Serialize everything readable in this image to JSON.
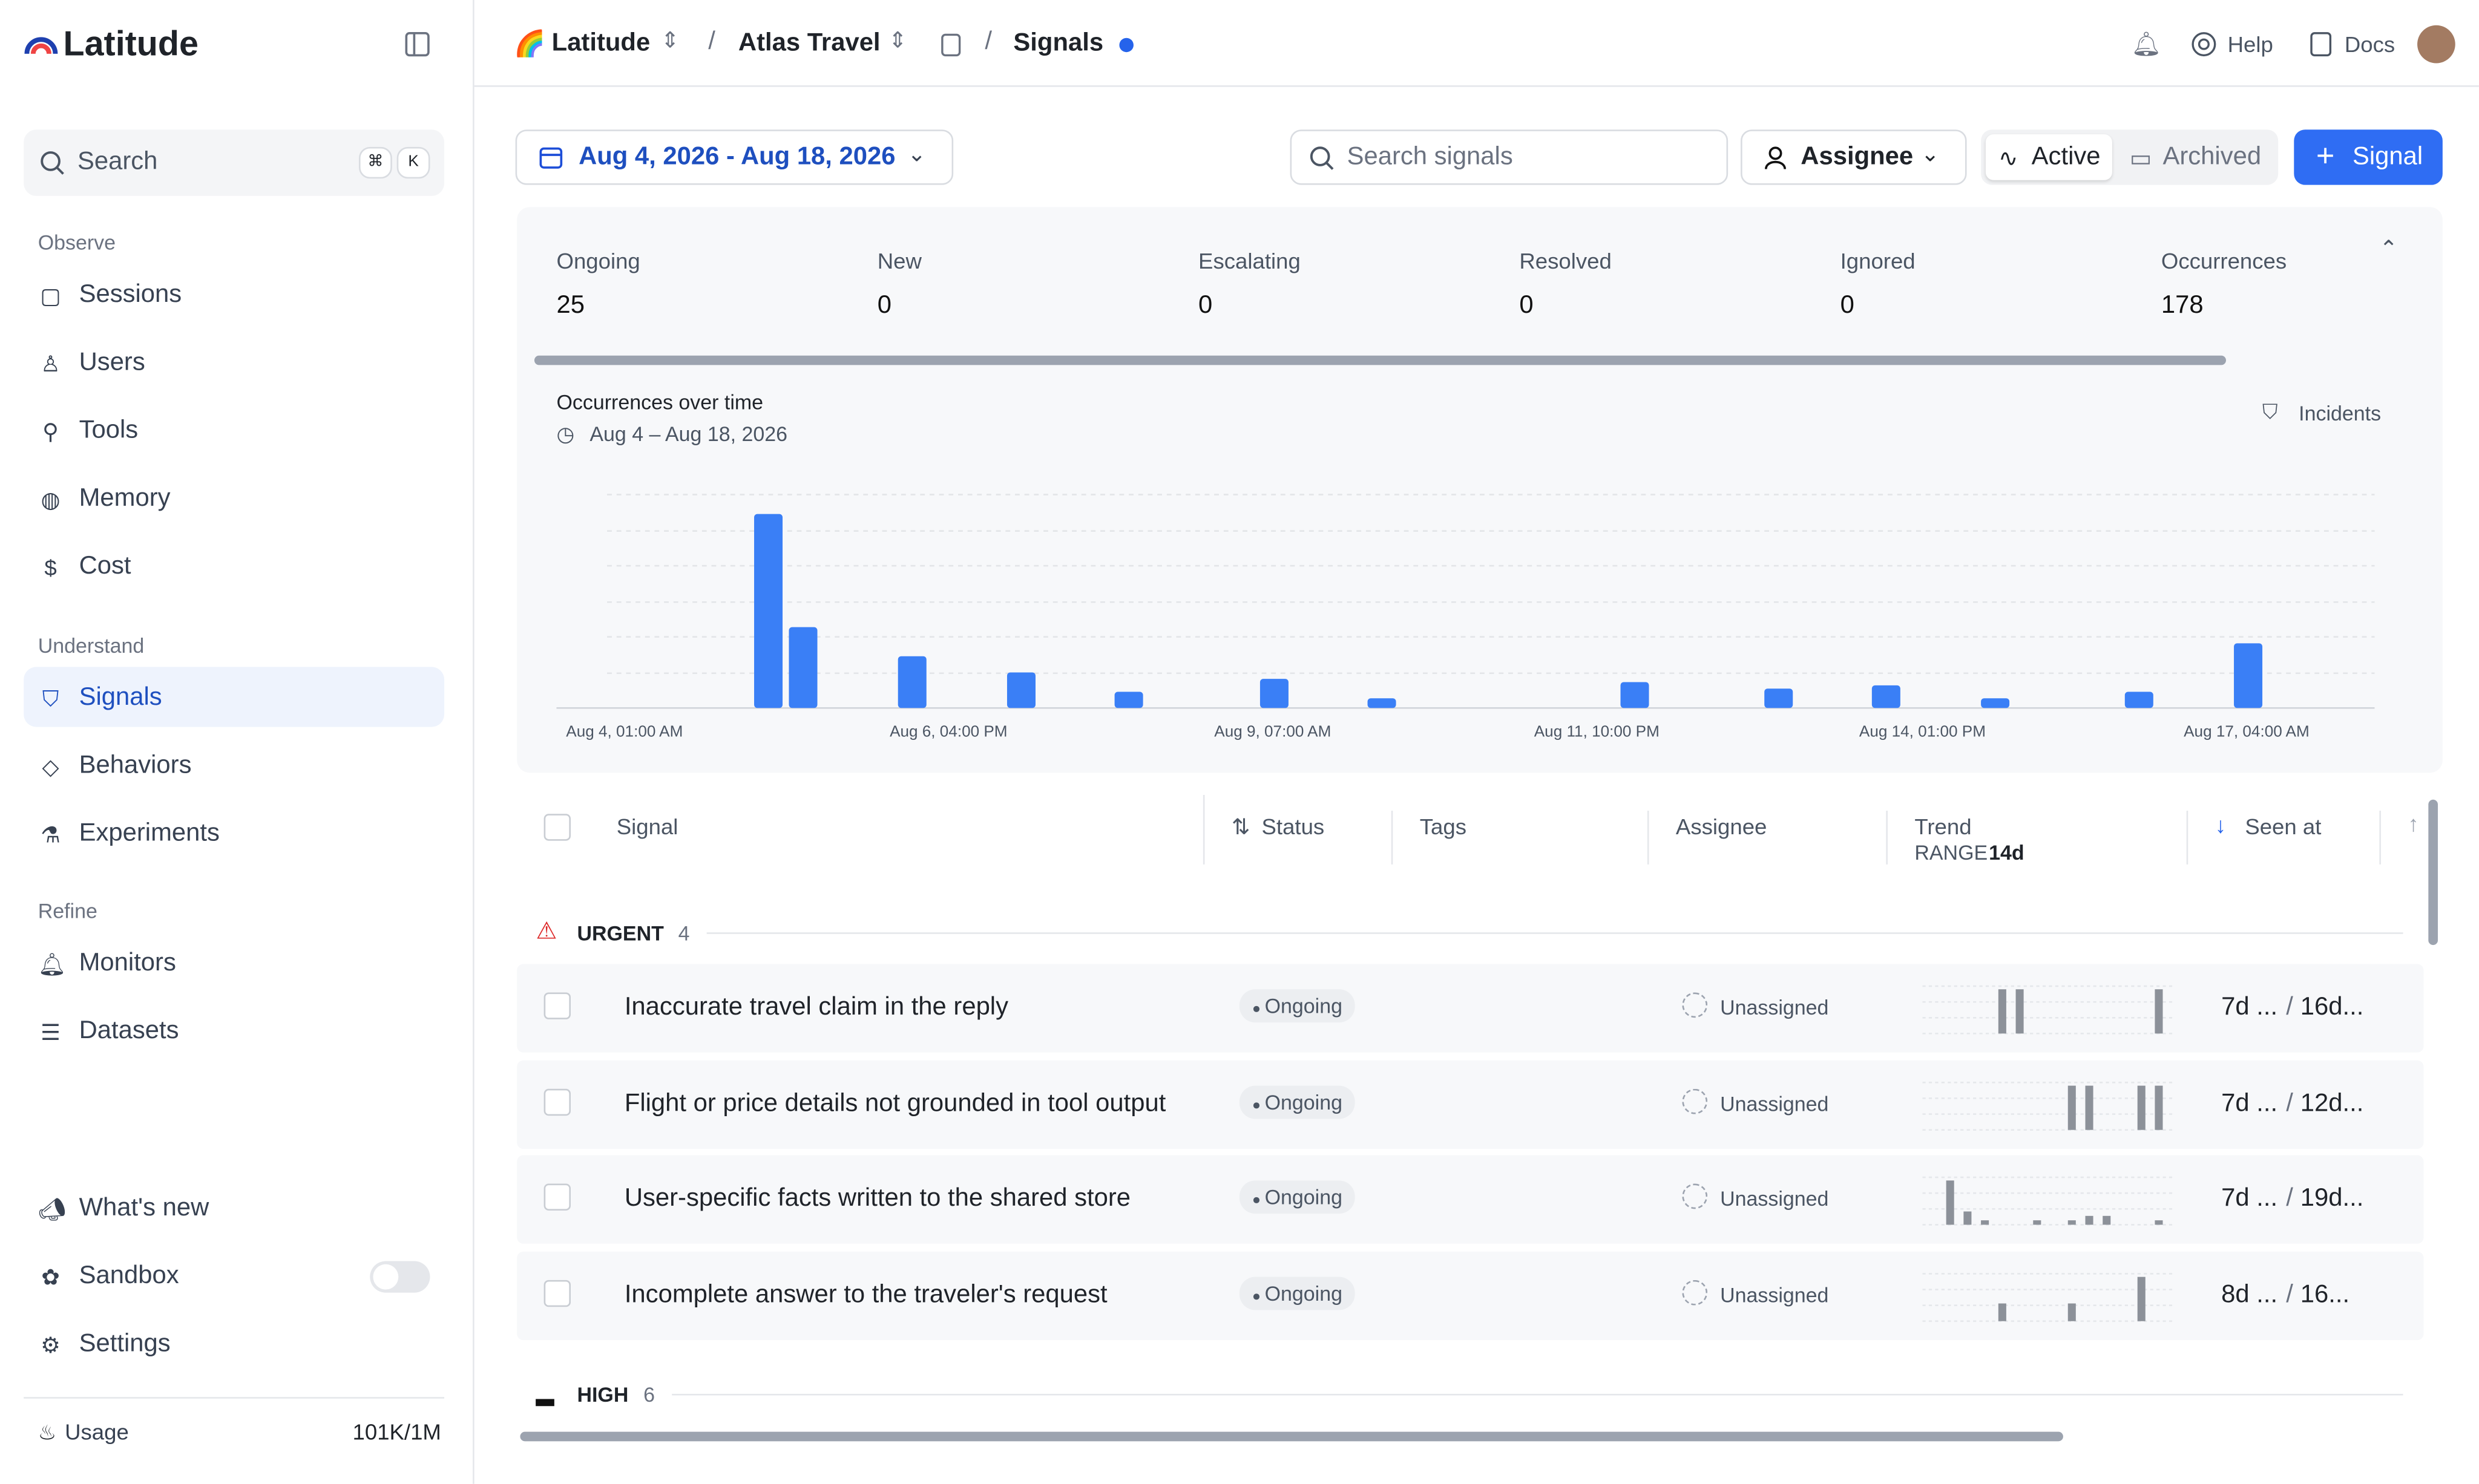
{
  "brand": "Latitude",
  "breadcrumb": [
    "Latitude",
    "Atlas Travel",
    "Signals"
  ],
  "topbar": {
    "help": "Help",
    "docs": "Docs"
  },
  "sidebar": {
    "search": "Search",
    "shortcut": [
      "⌘",
      "K"
    ],
    "sections": [
      {
        "title": "Observe",
        "items": [
          "Sessions",
          "Users",
          "Tools",
          "Memory",
          "Cost"
        ]
      },
      {
        "title": "Understand",
        "items": [
          "Signals",
          "Behaviors",
          "Experiments"
        ]
      },
      {
        "title": "Refine",
        "items": [
          "Monitors",
          "Datasets"
        ]
      }
    ],
    "bottom": [
      "What's new",
      "Sandbox",
      "Settings"
    ],
    "usage": {
      "label": "Usage",
      "value": "101K/1M"
    }
  },
  "toolbar": {
    "date_range": "Aug 4, 2026 - Aug 18, 2026",
    "search_placeholder": "Search signals",
    "assignee": "Assignee",
    "active": "Active",
    "archived": "Archived",
    "new_signal": "Signal"
  },
  "stats": [
    {
      "label": "Ongoing",
      "value": 25
    },
    {
      "label": "New",
      "value": 0
    },
    {
      "label": "Escalating",
      "value": 0
    },
    {
      "label": "Resolved",
      "value": 0
    },
    {
      "label": "Ignored",
      "value": 0
    },
    {
      "label": "Occurrences",
      "value": 178
    }
  ],
  "chart_data": {
    "type": "bar",
    "title": "Occurrences over time",
    "subtitle": "Aug 4 – Aug 18, 2026",
    "legend_action": "Incidents",
    "categories": [
      null,
      null,
      null,
      null,
      null,
      null,
      null,
      null,
      null,
      null,
      null,
      null,
      null
    ],
    "values": [
      60,
      25,
      16,
      11,
      5,
      9,
      3,
      8,
      6,
      7,
      3,
      5,
      20
    ],
    "color": "#3a7ff6",
    "ylim": [
      0,
      66
    ],
    "x_labels": [
      "Aug 4, 01:00 AM",
      "Aug 6, 04:00 PM",
      "Aug 9, 07:00 AM",
      "Aug 11, 10:00 PM",
      "Aug 14, 01:00 PM",
      "Aug 17, 04:00 AM"
    ]
  },
  "table": {
    "columns": [
      "Signal",
      "Status",
      "Tags",
      "Assignee",
      "Trend",
      "Seen at"
    ],
    "trend_range_label": "RANGE",
    "trend_range": "14d",
    "groups": [
      {
        "name": "URGENT",
        "count": 4,
        "rows": [
          {
            "title": "Inaccurate travel claim in the reply",
            "status": "Ongoing",
            "assignee": "Unassigned",
            "seen": "7d ...",
            "first_seen": "16d...",
            "trend": [
              0,
              0,
              0,
              0,
              10,
              10,
              0,
              0,
              0,
              0,
              0,
              0,
              0,
              10
            ]
          },
          {
            "title": "Flight or price details not grounded in tool output",
            "status": "Ongoing",
            "assignee": "Unassigned",
            "seen": "7d ...",
            "first_seen": "12d...",
            "trend": [
              0,
              0,
              0,
              0,
              0,
              0,
              0,
              0,
              10,
              10,
              0,
              0,
              10,
              10
            ]
          },
          {
            "title": "User-specific facts written to the shared store",
            "status": "Ongoing",
            "assignee": "Unassigned",
            "seen": "7d ...",
            "first_seen": "19d...",
            "trend": [
              0,
              10,
              3,
              1,
              0,
              0,
              1,
              0,
              1,
              2,
              2,
              0,
              0,
              1
            ]
          },
          {
            "title": "Incomplete answer to the traveler's request",
            "status": "Ongoing",
            "assignee": "Unassigned",
            "seen": "8d ...",
            "first_seen": "16...",
            "trend": [
              0,
              0,
              0,
              0,
              4,
              0,
              0,
              0,
              4,
              0,
              0,
              0,
              10,
              0
            ]
          }
        ]
      },
      {
        "name": "HIGH",
        "count": 6,
        "rows": []
      }
    ]
  }
}
